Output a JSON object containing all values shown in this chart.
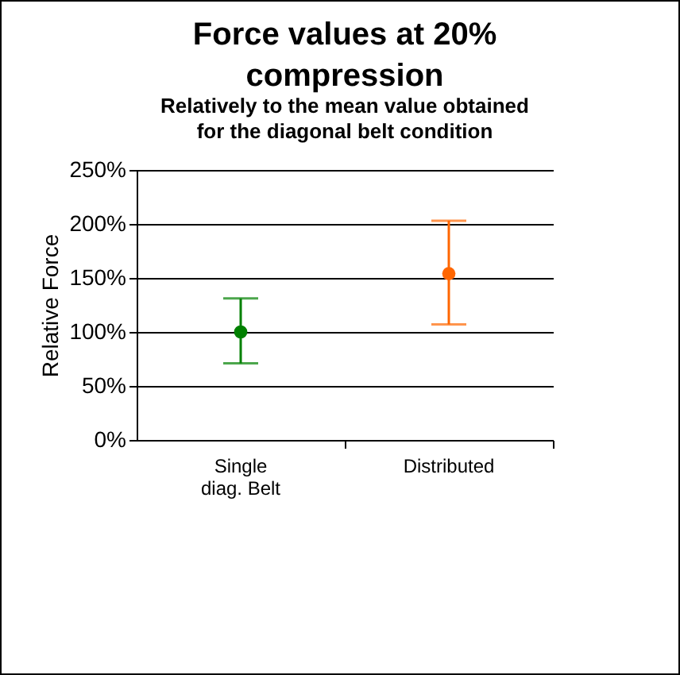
{
  "chart_data": {
    "type": "scatter",
    "title": "Force values at 20% compression",
    "subtitle": "Relatively to the mean value obtained for the diagonal belt condition",
    "ylabel": "Relative Force",
    "categories": [
      "Single diag. Belt",
      "Distributed"
    ],
    "values": [
      100,
      154
    ],
    "colors": [
      "#008000",
      "#ff6600"
    ],
    "errors": [
      [
        71,
        131
      ],
      [
        107,
        203
      ]
    ],
    "ylim": [
      0,
      250
    ],
    "yticks": [
      {
        "value": 0,
        "label": "0%"
      },
      {
        "value": 50,
        "label": "50%"
      },
      {
        "value": 100,
        "label": "100%"
      },
      {
        "value": 150,
        "label": "150%"
      },
      {
        "value": 200,
        "label": "200%"
      },
      {
        "value": 250,
        "label": "250%"
      }
    ],
    "grid": "y",
    "marker": "circle"
  }
}
